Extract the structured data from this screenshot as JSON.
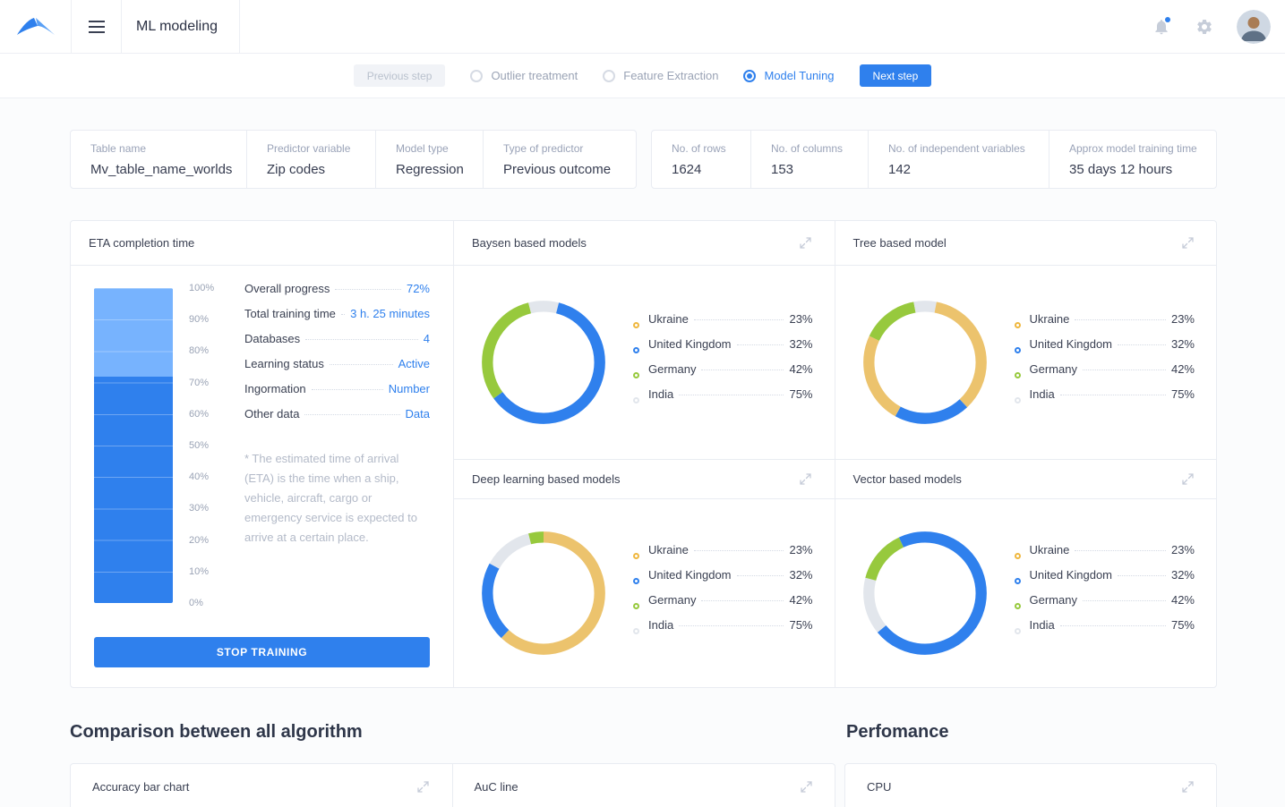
{
  "colors": {
    "accent": "#2F80ED",
    "light_blue": "#77B3FE",
    "gold": "#ECC36D",
    "green": "#97C93D",
    "grey": "#E2E6EC"
  },
  "topbar": {
    "title": "ML modeling"
  },
  "steps": {
    "previous_label": "Previous step",
    "next_label": "Next step",
    "items": [
      {
        "label": "Outlier treatment",
        "active": false
      },
      {
        "label": "Feature Extraction",
        "active": false
      },
      {
        "label": "Model Tuning",
        "active": true
      }
    ]
  },
  "summary": {
    "left": [
      {
        "label": "Table name",
        "value": "Mv_table_name_worlds"
      },
      {
        "label": "Predictor variable",
        "value": "Zip codes"
      },
      {
        "label": "Model type",
        "value": "Regression"
      },
      {
        "label": "Type of predictor",
        "value": "Previous outcome"
      }
    ],
    "right": [
      {
        "label": "No. of rows",
        "value": "1624"
      },
      {
        "label": "No. of columns",
        "value": "153"
      },
      {
        "label": "No. of independent variables",
        "value": "142"
      },
      {
        "label": "Approx model training time",
        "value": "35 days 12 hours"
      }
    ]
  },
  "eta": {
    "title": "ETA completion time",
    "progress_percent": 72,
    "axis": [
      "100%",
      "90%",
      "80%",
      "70%",
      "60%",
      "50%",
      "40%",
      "30%",
      "20%",
      "10%",
      "0%"
    ],
    "stats": [
      {
        "label": "Overall progress",
        "value": "72%"
      },
      {
        "label": "Total training time",
        "value": "3 h. 25 minutes"
      },
      {
        "label": "Databases",
        "value": "4"
      },
      {
        "label": "Learning status",
        "value": "Active"
      },
      {
        "label": "Ingormation",
        "value": "Number"
      },
      {
        "label": "Other data",
        "value": "Data"
      }
    ],
    "footnote": "* The estimated time of arrival (ETA) is the time when a ship, vehicle, aircraft, cargo or emergency service is expected to arrive at a certain place.",
    "stop_button": "STOP TRAINING"
  },
  "model_charts": [
    {
      "title": "Baysen based models",
      "type": "donut",
      "segments": [
        {
          "color": "#E2E6EC",
          "percent": 4
        },
        {
          "color": "#2F80ED",
          "percent": 61
        },
        {
          "color": "#97C93D",
          "percent": 31
        },
        {
          "color": "#E2E6EC",
          "percent": 4
        }
      ],
      "legend": [
        {
          "label": "Ukraine",
          "value": "23%",
          "color": "#EFB73E"
        },
        {
          "label": "United Kingdom",
          "value": "32%",
          "color": "#2F80ED"
        },
        {
          "label": "Germany",
          "value": "42%",
          "color": "#97C93D"
        },
        {
          "label": "India",
          "value": "75%",
          "color": "#E2E6EC"
        }
      ]
    },
    {
      "title": "Tree based model",
      "type": "donut",
      "segments": [
        {
          "color": "#E2E6EC",
          "percent": 3
        },
        {
          "color": "#ECC36D",
          "percent": 35
        },
        {
          "color": "#2F80ED",
          "percent": 20
        },
        {
          "color": "#ECC36D",
          "percent": 24
        },
        {
          "color": "#97C93D",
          "percent": 15
        },
        {
          "color": "#E2E6EC",
          "percent": 3
        }
      ],
      "legend": [
        {
          "label": "Ukraine",
          "value": "23%",
          "color": "#EFB73E"
        },
        {
          "label": "United Kingdom",
          "value": "32%",
          "color": "#2F80ED"
        },
        {
          "label": "Germany",
          "value": "42%",
          "color": "#97C93D"
        },
        {
          "label": "India",
          "value": "75%",
          "color": "#E2E6EC"
        }
      ]
    },
    {
      "title": "Deep learning based models",
      "type": "donut",
      "segments": [
        {
          "color": "#ECC36D",
          "percent": 62
        },
        {
          "color": "#2F80ED",
          "percent": 21
        },
        {
          "color": "#E2E6EC",
          "percent": 13
        },
        {
          "color": "#97C93D",
          "percent": 4
        }
      ],
      "legend": [
        {
          "label": "Ukraine",
          "value": "23%",
          "color": "#EFB73E"
        },
        {
          "label": "United Kingdom",
          "value": "32%",
          "color": "#2F80ED"
        },
        {
          "label": "Germany",
          "value": "42%",
          "color": "#97C93D"
        },
        {
          "label": "India",
          "value": "75%",
          "color": "#E2E6EC"
        }
      ]
    },
    {
      "title": "Vector based models",
      "type": "donut",
      "segments": [
        {
          "color": "#2F80ED",
          "percent": 64
        },
        {
          "color": "#E2E6EC",
          "percent": 15
        },
        {
          "color": "#97C93D",
          "percent": 14
        },
        {
          "color": "#2F80ED",
          "percent": 7
        }
      ],
      "legend": [
        {
          "label": "Ukraine",
          "value": "23%",
          "color": "#EFB73E"
        },
        {
          "label": "United Kingdom",
          "value": "32%",
          "color": "#2F80ED"
        },
        {
          "label": "Germany",
          "value": "42%",
          "color": "#97C93D"
        },
        {
          "label": "India",
          "value": "75%",
          "color": "#E2E6EC"
        }
      ]
    }
  ],
  "sections": {
    "comparison_title": "Comparison between all algorithm",
    "performance_title": "Perfomance",
    "cards": [
      "Accuracy bar chart",
      "AuC line",
      "CPU"
    ]
  }
}
